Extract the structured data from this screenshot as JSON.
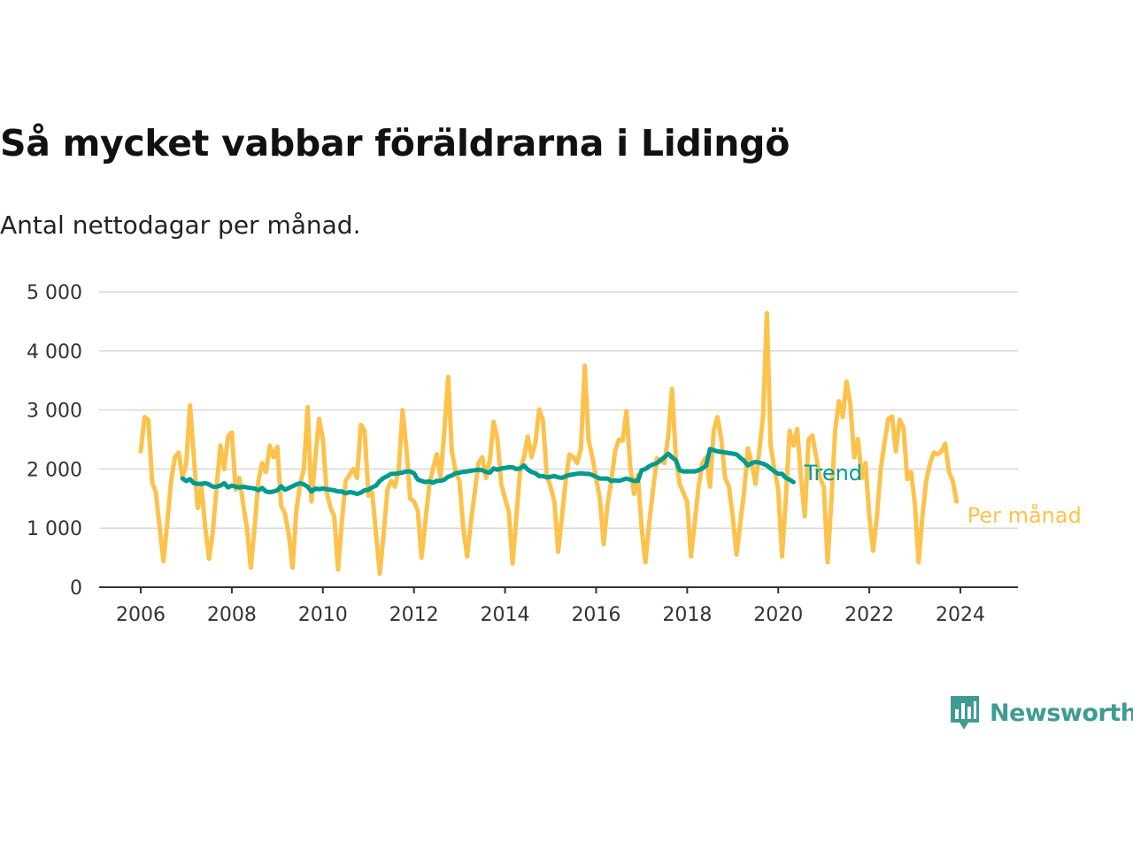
{
  "header": {
    "title": "Så mycket vabbar föräldrarna i Lidingö",
    "subtitle": "Antal nettodagar per månad."
  },
  "brand": {
    "name": "Newsworthy",
    "color": "#3f9b93",
    "logo_icon": "chart-bars-badge-icon"
  },
  "chart_data": {
    "type": "line",
    "title": "Så mycket vabbar föräldrarna i Lidingö",
    "subtitle": "Antal nettodagar per månad.",
    "xlabel": "",
    "ylabel": "",
    "xlim": [
      2006,
      2024.4
    ],
    "ylim": [
      0,
      5000
    ],
    "x_ticks": [
      2006,
      2008,
      2010,
      2012,
      2014,
      2016,
      2018,
      2020,
      2022,
      2024
    ],
    "x_tick_labels": [
      "2006",
      "2008",
      "2010",
      "2012",
      "2014",
      "2016",
      "2018",
      "2020",
      "2022",
      "2024"
    ],
    "y_ticks": [
      0,
      1000,
      2000,
      3000,
      4000,
      5000
    ],
    "y_tick_labels": [
      "0",
      "1 000",
      "2 000",
      "3 000",
      "4 000",
      "5 000"
    ],
    "grid": true,
    "legend": "inline labels at line ends (right)",
    "series": [
      {
        "name": "Per månad",
        "color": "#fcc24c",
        "start": "2006-01",
        "frequency": "monthly",
        "values": [
          2300,
          2880,
          2830,
          1780,
          1600,
          1000,
          440,
          1100,
          1800,
          2200,
          2280,
          1850,
          2100,
          3080,
          2200,
          1340,
          1700,
          1000,
          480,
          950,
          1700,
          2400,
          2000,
          2550,
          2620,
          1650,
          1850,
          1400,
          1000,
          330,
          1000,
          1800,
          2100,
          1950,
          2400,
          2200,
          2380,
          1380,
          1250,
          900,
          330,
          1300,
          1750,
          2000,
          3050,
          1450,
          2180,
          2850,
          2500,
          1600,
          1350,
          1200,
          300,
          1100,
          1800,
          1900,
          2000,
          1850,
          2750,
          2650,
          1550,
          1600,
          900,
          230,
          900,
          1650,
          1800,
          1700,
          2000,
          3000,
          2350,
          1500,
          1450,
          1300,
          500,
          1100,
          1700,
          2000,
          2250,
          1850,
          2650,
          3560,
          2300,
          1950,
          1800,
          1000,
          520,
          1100,
          1600,
          2100,
          2200,
          1850,
          2150,
          2800,
          2500,
          1750,
          1500,
          1280,
          400,
          1200,
          2000,
          2200,
          2550,
          2200,
          2450,
          3010,
          2820,
          1900,
          1700,
          1450,
          600,
          1200,
          1800,
          2250,
          2200,
          2100,
          2350,
          3750,
          2500,
          2200,
          1850,
          1500,
          730,
          1400,
          1800,
          2300,
          2500,
          2480,
          2980,
          2050,
          1580,
          1900,
          1000,
          420,
          1100,
          1650,
          2180,
          2150,
          2100,
          2550,
          3360,
          2200,
          1750,
          1600,
          1450,
          520,
          1100,
          1700,
          2100,
          2200,
          1700,
          2650,
          2880,
          2500,
          1850,
          1700,
          1200,
          550,
          1100,
          1600,
          2350,
          2100,
          1750,
          2300,
          2900,
          4640,
          2400,
          2000,
          1650,
          520,
          1500,
          2650,
          2400,
          2680,
          1850,
          1200,
          2500,
          2570,
          2200,
          1850,
          1700,
          420,
          1450,
          2650,
          3150,
          2880,
          3480,
          3100,
          2200,
          2510,
          1850,
          2100,
          1200,
          620,
          1200,
          2000,
          2450,
          2850,
          2890,
          2300,
          2840,
          2700,
          1830,
          1950,
          1400,
          420,
          1200,
          1800,
          2100,
          2280,
          2250,
          2300,
          2430,
          1950,
          1800,
          1450
        ]
      },
      {
        "name": "Trend",
        "color": "#009b8e",
        "start": "2006-12",
        "frequency": "monthly",
        "values": [
          1840,
          1800,
          1830,
          1760,
          1750,
          1750,
          1760,
          1740,
          1700,
          1700,
          1720,
          1760,
          1690,
          1720,
          1700,
          1690,
          1700,
          1690,
          1680,
          1670,
          1640,
          1680,
          1620,
          1610,
          1620,
          1640,
          1710,
          1650,
          1680,
          1710,
          1740,
          1760,
          1740,
          1700,
          1620,
          1670,
          1660,
          1670,
          1660,
          1650,
          1640,
          1620,
          1620,
          1590,
          1610,
          1600,
          1580,
          1600,
          1640,
          1650,
          1690,
          1720,
          1800,
          1850,
          1880,
          1920,
          1920,
          1930,
          1940,
          1960,
          1960,
          1930,
          1820,
          1800,
          1780,
          1790,
          1770,
          1800,
          1800,
          1820,
          1870,
          1890,
          1930,
          1940,
          1950,
          1960,
          1970,
          1980,
          1990,
          1980,
          1950,
          1940,
          2010,
          1990,
          2010,
          2020,
          2030,
          2030,
          2000,
          2010,
          2060,
          1990,
          1950,
          1930,
          1880,
          1880,
          1860,
          1870,
          1880,
          1860,
          1850,
          1880,
          1900,
          1910,
          1920,
          1930,
          1920,
          1920,
          1900,
          1870,
          1840,
          1840,
          1840,
          1800,
          1810,
          1800,
          1820,
          1840,
          1820,
          1800,
          1800,
          1980,
          2000,
          2050,
          2080,
          2100,
          2150,
          2200,
          2260,
          2200,
          2150,
          1980,
          1960,
          1960,
          1960,
          1960,
          1980,
          2010,
          2060,
          2340,
          2320,
          2300,
          2290,
          2280,
          2270,
          2260,
          2250,
          2190,
          2140,
          2060,
          2100,
          2120,
          2110,
          2090,
          2060,
          2010,
          1960,
          1920,
          1920,
          1850,
          1820,
          1780
        ]
      }
    ]
  }
}
